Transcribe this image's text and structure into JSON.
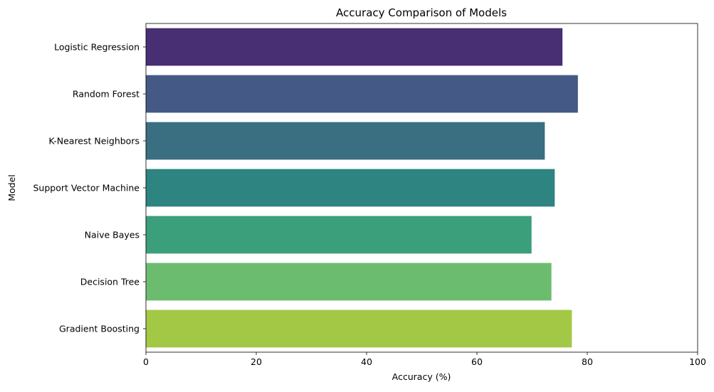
{
  "chart_data": {
    "type": "bar",
    "orientation": "horizontal",
    "title": "Accuracy Comparison of Models",
    "xlabel": "Accuracy (%)",
    "ylabel": "Model",
    "xlim": [
      0,
      100
    ],
    "xticks": [
      0,
      20,
      40,
      60,
      80,
      100
    ],
    "grid": false,
    "categories": [
      "Logistic Regression",
      "Random Forest",
      "K-Nearest Neighbors",
      "Support Vector Machine",
      "Naive Bayes",
      "Decision Tree",
      "Gradient Boosting"
    ],
    "values": [
      75.5,
      78.3,
      72.3,
      74.1,
      69.9,
      73.5,
      77.2
    ],
    "colors": [
      "#482e73",
      "#445985",
      "#396f80",
      "#2d8480",
      "#3a9f7a",
      "#6bbc6f",
      "#a3c845"
    ]
  }
}
